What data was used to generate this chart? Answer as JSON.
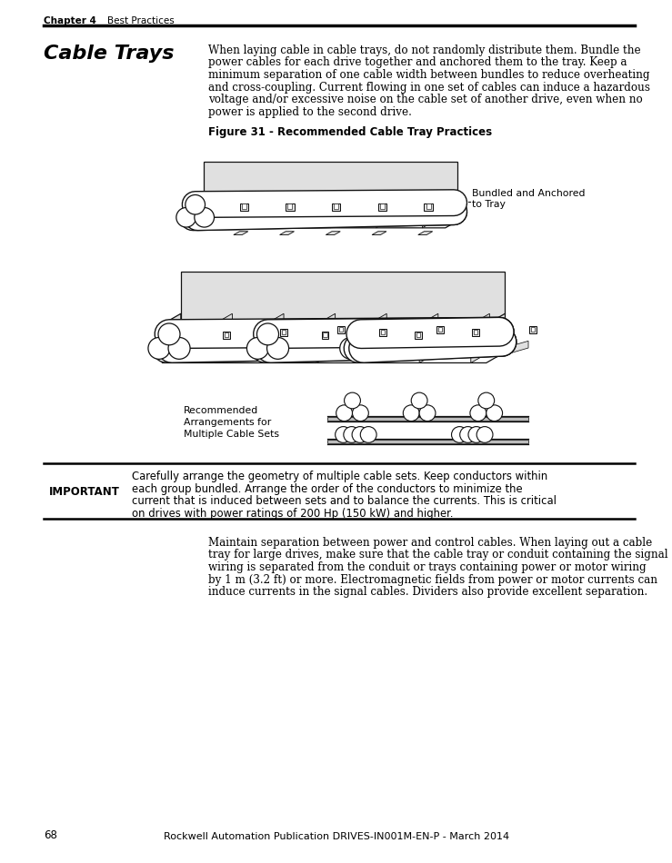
{
  "page_width": 9.54,
  "page_height": 12.35,
  "bg_color": "#ffffff",
  "header_chapter": "Chapter 4",
  "header_section": "Best Practices",
  "footer_page": "68",
  "footer_center": "Rockwell Automation Publication DRIVES-IN001M-EN-P - March 2014",
  "section_title": "Cable Trays",
  "figure_caption": "Figure 31 - Recommended Cable Tray Practices",
  "annotation_top": "Bundled and Anchored\nto Tray",
  "annotation_bottom_label": "Recommended\nArrangements for\nMultiple Cable Sets",
  "important_label": "IMPORTANT",
  "important_text_lines": [
    "Carefully arrange the geometry of multiple cable sets. Keep conductors within",
    "each group bundled. Arrange the order of the conductors to minimize the",
    "current that is induced between sets and to balance the currents. This is critical",
    "on drives with power ratings of 200 Hp (150 kW) and higher."
  ],
  "body_text_lines": [
    "When laying cable in cable trays, do not randomly distribute them. Bundle the",
    "power cables for each drive together and anchored them to the tray. Keep a",
    "minimum separation of one cable width between bundles to reduce overheating",
    "and cross-coupling. Current flowing in one set of cables can induce a hazardous",
    "voltage and/or excessive noise on the cable set of another drive, even when no",
    "power is applied to the second drive."
  ],
  "bottom_text_lines": [
    "Maintain separation between power and control cables. When laying out a cable",
    "tray for large drives, make sure that the cable tray or conduit containing the signal",
    "wiring is separated from the conduit or trays containing power or motor wiring",
    "by 1 m (3.2 ft) or more. Electromagnetic fields from power or motor currents can",
    "induce currents in the signal cables. Dividers also provide excellent separation."
  ],
  "lw": 0.9,
  "cable_fill": "#ffffff",
  "cable_edge": "#111111",
  "tray_fill": "#ffffff",
  "tray_edge": "#111111",
  "tray_shade": "#e0e0e0"
}
